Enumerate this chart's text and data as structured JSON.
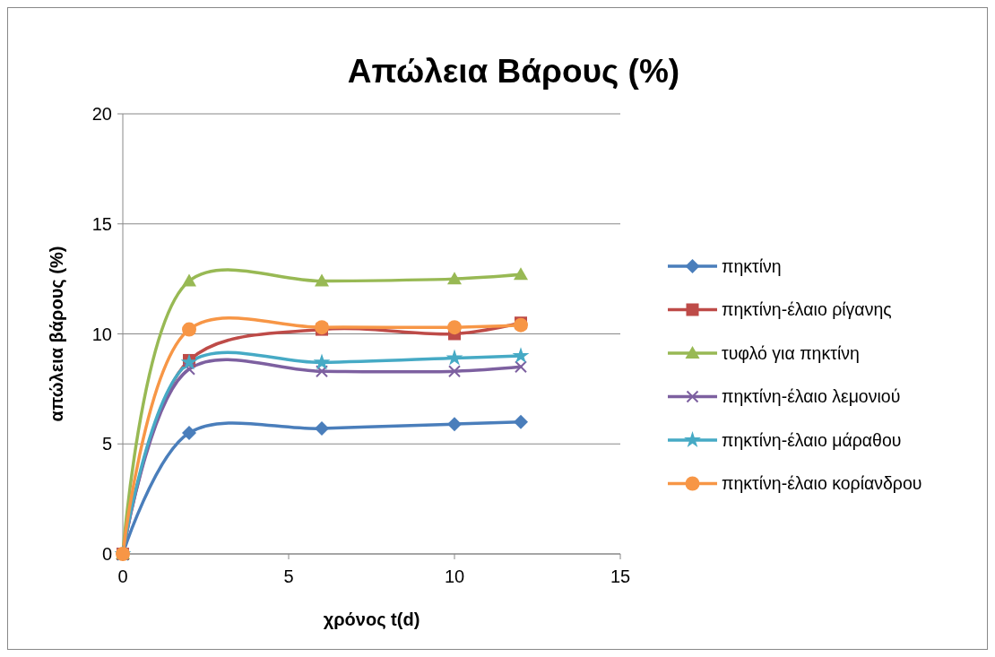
{
  "chart_data": {
    "type": "line",
    "title": "Απώλεια Βάρους (%)",
    "xlabel": "χρόνος t(d)",
    "ylabel": "απώλεια βάρους (%)",
    "x": [
      0,
      2,
      6,
      10,
      12
    ],
    "series": [
      {
        "name": "πηκτίνη",
        "color": "#4a7ebb",
        "marker": "diamond",
        "values": [
          0,
          5.5,
          5.7,
          5.9,
          6.0
        ]
      },
      {
        "name": "πηκτίνη-έλαιο ρίγανης",
        "color": "#be4b48",
        "marker": "square",
        "values": [
          0,
          8.8,
          10.2,
          10.0,
          10.5
        ]
      },
      {
        "name": "τυφλό για πηκτίνη",
        "color": "#98b954",
        "marker": "triangle",
        "values": [
          0,
          12.4,
          12.4,
          12.5,
          12.7
        ]
      },
      {
        "name": "πηκτίνη-έλαιο λεμονιού",
        "color": "#7d60a0",
        "marker": "cross",
        "values": [
          0,
          8.4,
          8.3,
          8.3,
          8.5
        ]
      },
      {
        "name": "πηκτίνη-έλαιο μάραθου",
        "color": "#46aac5",
        "marker": "star",
        "values": [
          0,
          8.7,
          8.7,
          8.9,
          9.0
        ]
      },
      {
        "name": "πηκτίνη-έλαιο κορίανδρου",
        "color": "#f79646",
        "marker": "circle",
        "values": [
          0,
          10.2,
          10.3,
          10.3,
          10.4
        ]
      }
    ],
    "xlim": [
      0,
      15
    ],
    "xticks": [
      0,
      5,
      10,
      15
    ],
    "ylim": [
      0,
      20
    ],
    "yticks": [
      0,
      5,
      10,
      15,
      20
    ],
    "grid": "y",
    "legend": "right",
    "line_style": "solid"
  }
}
